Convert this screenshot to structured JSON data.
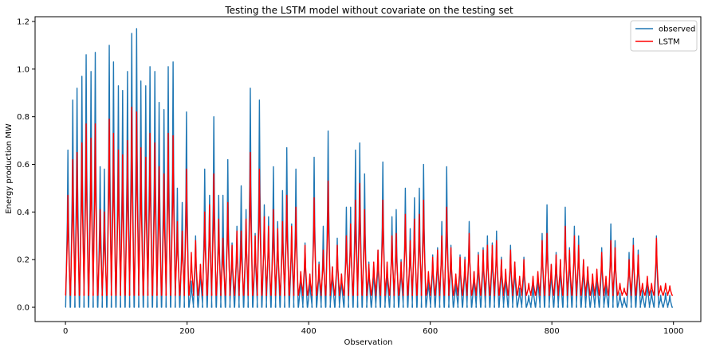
{
  "chart_data": {
    "type": "line",
    "title": "Testing the LSTM model without covariate on the testing set",
    "xlabel": "Observation",
    "ylabel": "Energy production MW",
    "xlim": [
      -50,
      1045
    ],
    "ylim": [
      -0.06,
      1.22
    ],
    "xticks": [
      0,
      200,
      400,
      600,
      800,
      1000
    ],
    "yticks": [
      0.0,
      0.2,
      0.4,
      0.6,
      0.8,
      1.0,
      1.2
    ],
    "xtick_labels": [
      "0",
      "200",
      "400",
      "600",
      "800",
      "1000"
    ],
    "ytick_labels": [
      "0.0",
      "0.2",
      "0.4",
      "0.6",
      "0.8",
      "1.0",
      "1.2"
    ],
    "grid": false,
    "legend": "top-right",
    "period": 7.5,
    "series": [
      {
        "name": "observed",
        "color": "#1f77b4",
        "baseline": 0.0,
        "peak_x": [
          4,
          12,
          19,
          27,
          34,
          42,
          49,
          57,
          64,
          72,
          79,
          87,
          94,
          102,
          109,
          117,
          124,
          132,
          139,
          147,
          154,
          162,
          169,
          177,
          184,
          192,
          199,
          207,
          214,
          222,
          229,
          237,
          244,
          252,
          259,
          267,
          274,
          282,
          289,
          297,
          304,
          312,
          319,
          327,
          334,
          342,
          349,
          357,
          364,
          372,
          379,
          387,
          394,
          402,
          409,
          417,
          424,
          432,
          439,
          447,
          454,
          462,
          469,
          477,
          484,
          492,
          499,
          507,
          514,
          522,
          529,
          537,
          544,
          552,
          559,
          567,
          574,
          582,
          589,
          597,
          604,
          612,
          619,
          627,
          634,
          642,
          649,
          657,
          664,
          672,
          679,
          687,
          694,
          702,
          709,
          717,
          724,
          732,
          739,
          747,
          754,
          762,
          769,
          777,
          784,
          792,
          799,
          807,
          814,
          822,
          829,
          837,
          844,
          852,
          859,
          867,
          874,
          882,
          889,
          897,
          904,
          912,
          919,
          927,
          934,
          942,
          949,
          957,
          964,
          972,
          979,
          987,
          994
        ],
        "peak_y": [
          0.66,
          0.87,
          0.92,
          0.97,
          1.06,
          0.99,
          1.07,
          0.59,
          0.58,
          1.1,
          1.03,
          0.93,
          0.91,
          0.99,
          1.15,
          1.17,
          0.95,
          0.93,
          1.01,
          0.99,
          0.86,
          0.83,
          1.01,
          1.03,
          0.5,
          0.44,
          0.82,
          0.11,
          0.3,
          0.18,
          0.58,
          0.47,
          0.8,
          0.47,
          0.47,
          0.62,
          0.27,
          0.34,
          0.51,
          0.41,
          0.92,
          0.31,
          0.87,
          0.43,
          0.38,
          0.59,
          0.36,
          0.49,
          0.67,
          0.35,
          0.58,
          0.14,
          0.27,
          0.12,
          0.63,
          0.19,
          0.34,
          0.74,
          0.17,
          0.29,
          0.14,
          0.42,
          0.42,
          0.66,
          0.69,
          0.56,
          0.19,
          0.18,
          0.24,
          0.61,
          0.17,
          0.38,
          0.41,
          0.2,
          0.5,
          0.33,
          0.46,
          0.5,
          0.6,
          0.13,
          0.22,
          0.25,
          0.36,
          0.59,
          0.26,
          0.12,
          0.22,
          0.21,
          0.36,
          0.15,
          0.23,
          0.25,
          0.3,
          0.27,
          0.32,
          0.21,
          0.15,
          0.26,
          0.19,
          0.08,
          0.21,
          0.05,
          0.1,
          0.14,
          0.31,
          0.43,
          0.18,
          0.23,
          0.2,
          0.42,
          0.25,
          0.34,
          0.3,
          0.2,
          0.17,
          0.12,
          0.14,
          0.25,
          0.1,
          0.35,
          0.28,
          0.06,
          0.04,
          0.23,
          0.29,
          0.24,
          0.07,
          0.12,
          0.07,
          0.3,
          0.05,
          0.06,
          0.05,
          0.05
        ]
      },
      {
        "name": "LSTM",
        "color": "#ff0000",
        "baseline": 0.05,
        "peak_x": [
          4,
          12,
          19,
          27,
          34,
          42,
          49,
          57,
          64,
          72,
          79,
          87,
          94,
          102,
          109,
          117,
          124,
          132,
          139,
          147,
          154,
          162,
          169,
          177,
          184,
          192,
          199,
          207,
          214,
          222,
          229,
          237,
          244,
          252,
          259,
          267,
          274,
          282,
          289,
          297,
          304,
          312,
          319,
          327,
          334,
          342,
          349,
          357,
          364,
          372,
          379,
          387,
          394,
          402,
          409,
          417,
          424,
          432,
          439,
          447,
          454,
          462,
          469,
          477,
          484,
          492,
          499,
          507,
          514,
          522,
          529,
          537,
          544,
          552,
          559,
          567,
          574,
          582,
          589,
          597,
          604,
          612,
          619,
          627,
          634,
          642,
          649,
          657,
          664,
          672,
          679,
          687,
          694,
          702,
          709,
          717,
          724,
          732,
          739,
          747,
          754,
          762,
          769,
          777,
          784,
          792,
          799,
          807,
          814,
          822,
          829,
          837,
          844,
          852,
          859,
          867,
          874,
          882,
          889,
          897,
          904,
          912,
          919,
          927,
          934,
          942,
          949,
          957,
          964,
          972,
          979,
          987,
          994
        ],
        "peak_y": [
          0.47,
          0.62,
          0.65,
          0.69,
          0.77,
          0.71,
          0.77,
          0.41,
          0.4,
          0.79,
          0.73,
          0.66,
          0.64,
          0.7,
          0.84,
          0.82,
          0.67,
          0.63,
          0.73,
          0.69,
          0.59,
          0.56,
          0.73,
          0.72,
          0.36,
          0.32,
          0.58,
          0.23,
          0.28,
          0.18,
          0.4,
          0.43,
          0.56,
          0.37,
          0.29,
          0.44,
          0.26,
          0.32,
          0.32,
          0.37,
          0.65,
          0.3,
          0.58,
          0.38,
          0.34,
          0.41,
          0.33,
          0.36,
          0.47,
          0.34,
          0.42,
          0.15,
          0.26,
          0.14,
          0.46,
          0.18,
          0.24,
          0.53,
          0.17,
          0.26,
          0.14,
          0.3,
          0.35,
          0.45,
          0.52,
          0.41,
          0.18,
          0.19,
          0.24,
          0.45,
          0.19,
          0.3,
          0.31,
          0.19,
          0.39,
          0.28,
          0.37,
          0.39,
          0.45,
          0.15,
          0.21,
          0.24,
          0.3,
          0.42,
          0.25,
          0.14,
          0.21,
          0.2,
          0.31,
          0.15,
          0.22,
          0.24,
          0.26,
          0.26,
          0.28,
          0.2,
          0.16,
          0.24,
          0.19,
          0.13,
          0.2,
          0.1,
          0.13,
          0.15,
          0.28,
          0.31,
          0.18,
          0.22,
          0.2,
          0.34,
          0.24,
          0.3,
          0.26,
          0.2,
          0.17,
          0.14,
          0.16,
          0.23,
          0.13,
          0.28,
          0.25,
          0.1,
          0.08,
          0.2,
          0.26,
          0.22,
          0.1,
          0.13,
          0.1,
          0.29,
          0.09,
          0.1,
          0.09,
          0.18
        ]
      }
    ]
  }
}
